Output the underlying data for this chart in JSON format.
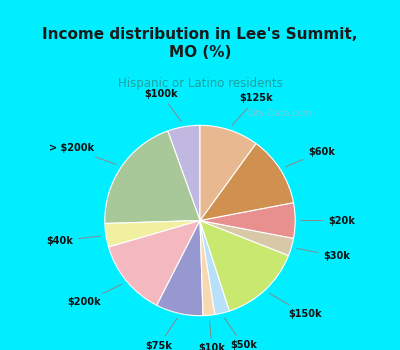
{
  "title": "Income distribution in Lee's Summit,\nMO (%)",
  "subtitle": "Hispanic or Latino residents",
  "labels": [
    "$100k",
    "> $200k",
    "$40k",
    "$200k",
    "$75k",
    "$10k",
    "$50k",
    "$150k",
    "$30k",
    "$20k",
    "$60k",
    "$125k"
  ],
  "values": [
    5.5,
    20,
    4,
    13,
    8,
    2,
    2.5,
    14,
    3,
    6,
    12,
    10
  ],
  "colors": [
    "#c0b8e0",
    "#a8c89a",
    "#f0f0a0",
    "#f4b8c0",
    "#9898d0",
    "#f8d8b0",
    "#b8e0f8",
    "#c8e870",
    "#d8c8a8",
    "#e89090",
    "#d09050",
    "#e8b890"
  ],
  "bg_color": "#00eeff",
  "chart_bg": "#d8f0e0",
  "title_color": "#1a1a1a",
  "subtitle_color": "#20a0a0",
  "watermark": "  City-Data.com",
  "startangle": 90
}
